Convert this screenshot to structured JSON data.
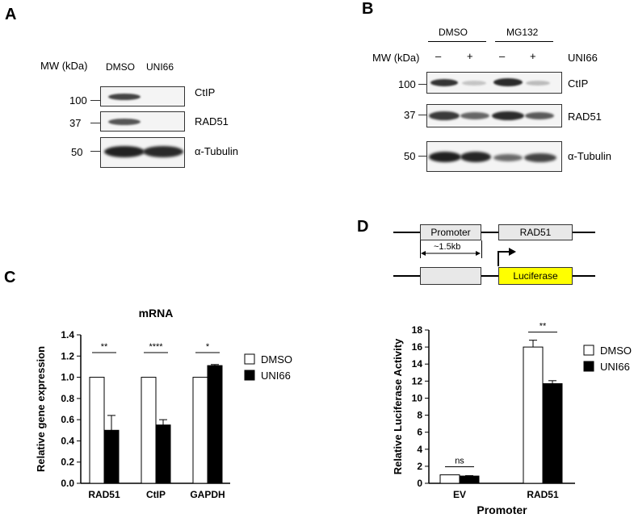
{
  "panels": {
    "A": "A",
    "B": "B",
    "C": "C",
    "D": "D"
  },
  "panelA": {
    "mw_label": "MW (kDa)",
    "lanes": [
      "DMSO",
      "UNI66"
    ],
    "markers": [
      "100",
      "37",
      "50"
    ],
    "proteins": [
      "CtIP",
      "RAD51",
      "α-Tubulin"
    ]
  },
  "panelB": {
    "groups": [
      "DMSO",
      "MG132"
    ],
    "mw_label": "MW (kDa)",
    "signs": [
      "–",
      "+",
      "–",
      "+"
    ],
    "treatment": "UNI66",
    "markers": [
      "100",
      "37",
      "50"
    ],
    "proteins": [
      "CtIP",
      "RAD51",
      "α-Tubulin"
    ]
  },
  "panelD_diagram": {
    "promoter": "Promoter",
    "gene": "RAD51",
    "length": "~1.5kb",
    "reporter": "Luciferase",
    "reporter_color": "#ffff00"
  },
  "chart_data": [
    {
      "type": "bar",
      "title": "mRNA",
      "ylabel": "Relative gene expression",
      "xlabel": "",
      "categories": [
        "RAD51",
        "CtIP",
        "GAPDH"
      ],
      "series": [
        {
          "name": "DMSO",
          "values": [
            1.0,
            1.0,
            1.0
          ],
          "errors": [
            0,
            0,
            0
          ],
          "color": "#ffffff"
        },
        {
          "name": "UNI66",
          "values": [
            0.5,
            0.55,
            1.11
          ],
          "errors": [
            0.14,
            0.05,
            0.01
          ],
          "color": "#000000"
        }
      ],
      "ylim": [
        0,
        1.4
      ],
      "yticks": [
        "0.0",
        "0.2",
        "0.4",
        "0.6",
        "0.8",
        "1.0",
        "1.2",
        "1.4"
      ],
      "significance": [
        "**",
        "****",
        "*"
      ],
      "legend": "right"
    },
    {
      "type": "bar",
      "title": "",
      "ylabel": "Relative Luciferase Activity",
      "xlabel": "Promoter",
      "categories": [
        "EV",
        "RAD51"
      ],
      "series": [
        {
          "name": "DMSO",
          "values": [
            1.0,
            16.0
          ],
          "errors": [
            0,
            0.8
          ],
          "color": "#ffffff"
        },
        {
          "name": "UNI66",
          "values": [
            0.85,
            11.7
          ],
          "errors": [
            0.05,
            0.35
          ],
          "color": "#000000"
        }
      ],
      "ylim": [
        0,
        18
      ],
      "yticks": [
        "0",
        "2",
        "4",
        "6",
        "8",
        "10",
        "12",
        "14",
        "16",
        "18"
      ],
      "significance": [
        "ns",
        "**"
      ],
      "legend": "right"
    }
  ]
}
